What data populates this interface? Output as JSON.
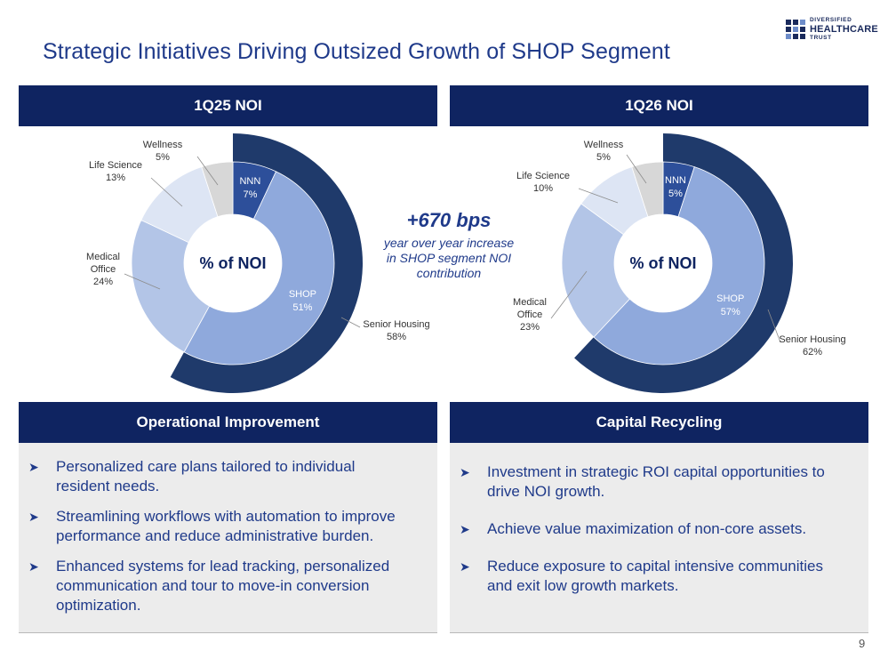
{
  "title": "Strategic Initiatives Driving Outsized Growth of SHOP Segment",
  "logo": {
    "line1": "DIVERSIFIED",
    "line2": "HEALTHCARE",
    "line3": "TRUST"
  },
  "left_header": "1Q25 NOI",
  "right_header": "1Q26 NOI",
  "callout": {
    "big": "+670 bps",
    "small1": "year over year increase",
    "small2": "in SHOP segment NOI",
    "small3": "contribution"
  },
  "colors": {
    "navy": "#0f2461",
    "outer_ring": "#1f3a6b",
    "nnn": "#2d4f9a",
    "shop": "#8fa9dc",
    "medical": "#b3c5e7",
    "life": "#dde5f4",
    "wellness": "#d7d7d7"
  },
  "chart_data": [
    {
      "type": "pie",
      "title": "1Q25 NOI",
      "center_label": "% of NOI",
      "slices": [
        {
          "name": "NNN",
          "value_label": "7%",
          "value": 7
        },
        {
          "name": "SHOP",
          "value_label": "51%",
          "value": 51
        },
        {
          "name": "Medical Office",
          "label_lines": [
            "Medical",
            "Office"
          ],
          "value_label": "24%",
          "value": 24
        },
        {
          "name": "Life Science",
          "value_label": "13%",
          "value": 13
        },
        {
          "name": "Wellness",
          "value_label": "5%",
          "value": 5
        }
      ],
      "outer_ring": {
        "name": "Senior Housing",
        "value_label": "58%",
        "value": 58
      }
    },
    {
      "type": "pie",
      "title": "1Q26 NOI",
      "center_label": "% of NOI",
      "slices": [
        {
          "name": "NNN",
          "value_label": "5%",
          "value": 5
        },
        {
          "name": "SHOP",
          "value_label": "57%",
          "value": 57
        },
        {
          "name": "Medical Office",
          "label_lines": [
            "Medical",
            "Office"
          ],
          "value_label": "23%",
          "value": 23
        },
        {
          "name": "Life Science",
          "value_label": "10%",
          "value": 10
        },
        {
          "name": "Wellness",
          "value_label": "5%",
          "value": 5
        }
      ],
      "outer_ring": {
        "name": "Senior Housing",
        "value_label": "62%",
        "value": 62
      }
    }
  ],
  "operational": {
    "header": "Operational Improvement",
    "bullets": [
      {
        "line1": "Personalized care plans tailored to individual",
        "line2": "resident needs."
      },
      {
        "line1": "Streamlining workflows with automation to improve",
        "line2": "performance and reduce administrative burden."
      },
      {
        "line1": "Enhanced systems for lead tracking, personalized",
        "line2": "communication and tour to move-in conversion",
        "line3": "optimization."
      }
    ]
  },
  "capital": {
    "header": "Capital Recycling",
    "bullets": [
      {
        "line1": "Investment in strategic ROI capital opportunities to",
        "line2": "drive NOI growth."
      },
      {
        "line1": "Achieve value maximization of non-core assets."
      },
      {
        "line1": "Reduce exposure to capital intensive communities",
        "line2": "and exit low growth markets."
      }
    ]
  },
  "page_number": "9"
}
